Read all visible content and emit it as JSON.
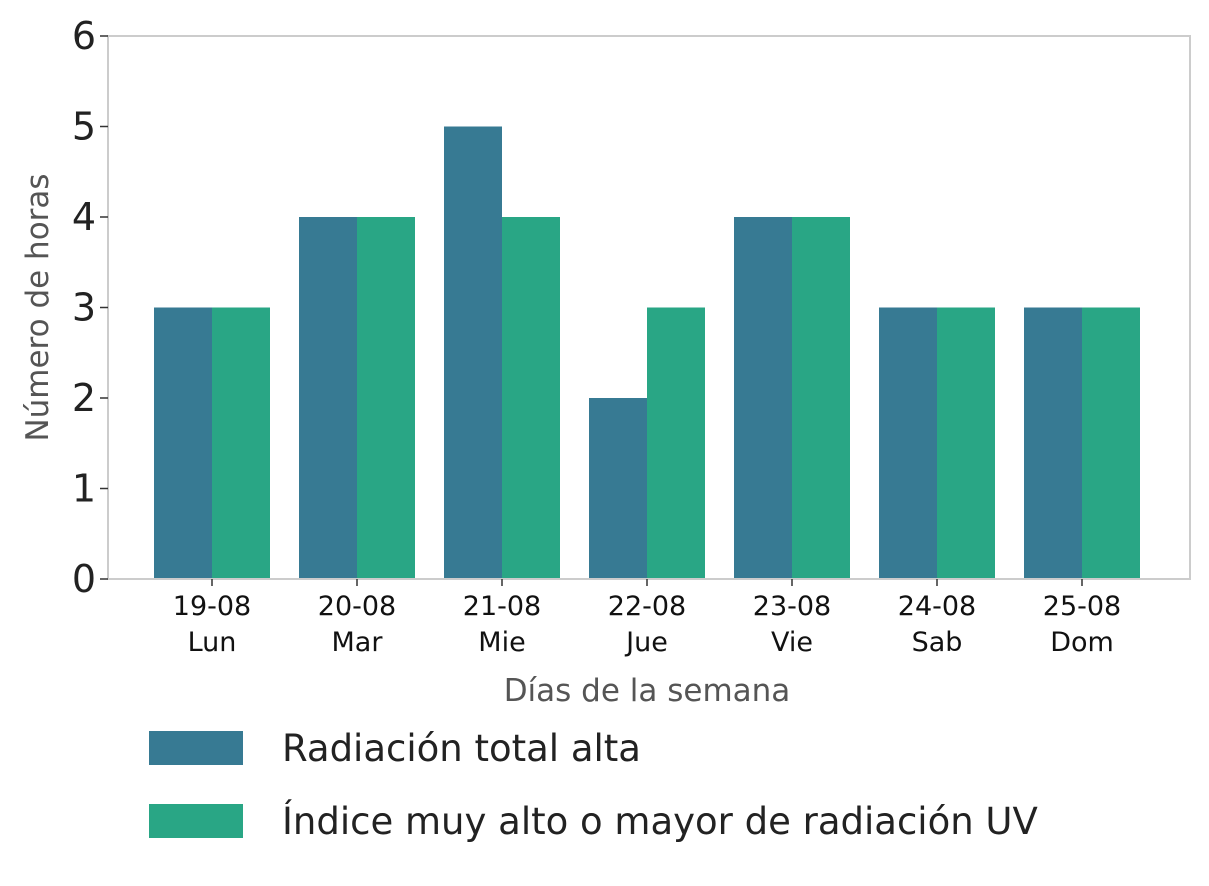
{
  "chart_data": {
    "type": "bar",
    "title": "",
    "xlabel": "Días de la semana",
    "ylabel": "Número de horas",
    "ylim": [
      0,
      6
    ],
    "yticks": [
      "0",
      "1",
      "2",
      "3",
      "4",
      "5",
      "6"
    ],
    "grid": false,
    "legend_position": "bottom",
    "categories": [
      {
        "date": "19-08",
        "day": "Lun"
      },
      {
        "date": "20-08",
        "day": "Mar"
      },
      {
        "date": "21-08",
        "day": "Mie"
      },
      {
        "date": "22-08",
        "day": "Jue"
      },
      {
        "date": "23-08",
        "day": "Vie"
      },
      {
        "date": "24-08",
        "day": "Sab"
      },
      {
        "date": "25-08",
        "day": "Dom"
      }
    ],
    "series": [
      {
        "name": "Radiación total alta",
        "color": "#377a93",
        "values": [
          3,
          4,
          5,
          2,
          4,
          3,
          3
        ]
      },
      {
        "name": "Índice muy alto o mayor de radiación UV",
        "color": "#29a685",
        "values": [
          3,
          4,
          4,
          3,
          4,
          3,
          3
        ]
      }
    ]
  }
}
